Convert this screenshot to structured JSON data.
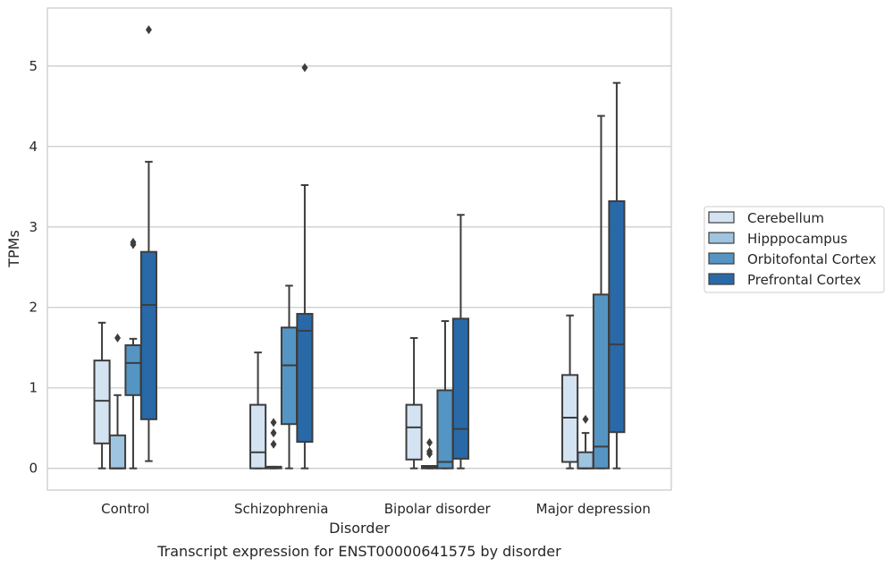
{
  "chart_data": {
    "type": "boxplot",
    "title": "Transcript expression for ENST00000641575 by disorder",
    "xlabel": "Disorder",
    "ylabel": "TPMs",
    "ylim": [
      -0.27,
      5.72
    ],
    "yticks": [
      0,
      1,
      2,
      3,
      4,
      5
    ],
    "grid": true,
    "legend_position": "right",
    "categories": [
      "Control",
      "Schizophrenia",
      "Bipolar disorder",
      "Major depression"
    ],
    "series": [
      {
        "name": "Cerebellum",
        "color": "#d4e3f2",
        "boxes": [
          {
            "whislo": 0.0,
            "q1": 0.31,
            "med": 0.84,
            "q3": 1.34,
            "whishi": 1.81,
            "fliers": []
          },
          {
            "whislo": 0.0,
            "q1": 0.0,
            "med": 0.2,
            "q3": 0.79,
            "whishi": 1.44,
            "fliers": []
          },
          {
            "whislo": 0.0,
            "q1": 0.11,
            "med": 0.51,
            "q3": 0.79,
            "whishi": 1.62,
            "fliers": []
          },
          {
            "whislo": 0.0,
            "q1": 0.08,
            "med": 0.63,
            "q3": 1.16,
            "whishi": 1.9,
            "fliers": []
          }
        ]
      },
      {
        "name": "Hipppocampus",
        "color": "#9fc4e0",
        "boxes": [
          {
            "whislo": 0.0,
            "q1": 0.0,
            "med": 0.0,
            "q3": 0.41,
            "whishi": 0.91,
            "fliers": [
              1.62
            ]
          },
          {
            "whislo": 0.0,
            "q1": 0.0,
            "med": 0.01,
            "q3": 0.02,
            "whishi": 0.02,
            "fliers": [
              0.3,
              0.44,
              0.57
            ]
          },
          {
            "whislo": 0.0,
            "q1": 0.0,
            "med": 0.01,
            "q3": 0.03,
            "whishi": 0.03,
            "fliers": [
              0.18,
              0.21,
              0.32
            ]
          },
          {
            "whislo": 0.0,
            "q1": 0.0,
            "med": 0.0,
            "q3": 0.2,
            "whishi": 0.44,
            "fliers": [
              0.61
            ]
          }
        ]
      },
      {
        "name": "Orbitofontal Cortex",
        "color": "#5495c4",
        "boxes": [
          {
            "whislo": 0.0,
            "q1": 0.91,
            "med": 1.31,
            "q3": 1.53,
            "whishi": 1.61,
            "fliers": [
              2.78,
              2.81
            ]
          },
          {
            "whislo": 0.0,
            "q1": 0.55,
            "med": 1.28,
            "q3": 1.75,
            "whishi": 2.27,
            "fliers": []
          },
          {
            "whislo": 0.0,
            "q1": 0.0,
            "med": 0.08,
            "q3": 0.97,
            "whishi": 1.83,
            "fliers": []
          },
          {
            "whislo": 0.0,
            "q1": 0.0,
            "med": 0.27,
            "q3": 2.16,
            "whishi": 4.38,
            "fliers": []
          }
        ]
      },
      {
        "name": "Prefrontal Cortex",
        "color": "#2a69a7",
        "boxes": [
          {
            "whislo": 0.09,
            "q1": 0.61,
            "med": 2.03,
            "q3": 2.69,
            "whishi": 3.81,
            "fliers": [
              5.45
            ]
          },
          {
            "whislo": 0.0,
            "q1": 0.33,
            "med": 1.71,
            "q3": 1.92,
            "whishi": 3.52,
            "fliers": [
              4.98
            ]
          },
          {
            "whislo": 0.0,
            "q1": 0.12,
            "med": 0.49,
            "q3": 1.86,
            "whishi": 3.15,
            "fliers": []
          },
          {
            "whislo": 0.0,
            "q1": 0.45,
            "med": 1.54,
            "q3": 3.32,
            "whishi": 4.79,
            "fliers": []
          }
        ]
      }
    ]
  },
  "colors": {
    "grid": "#cccccc",
    "frame": "#cccccc",
    "box_edge": "#3d3d3d",
    "text": "#262626"
  }
}
